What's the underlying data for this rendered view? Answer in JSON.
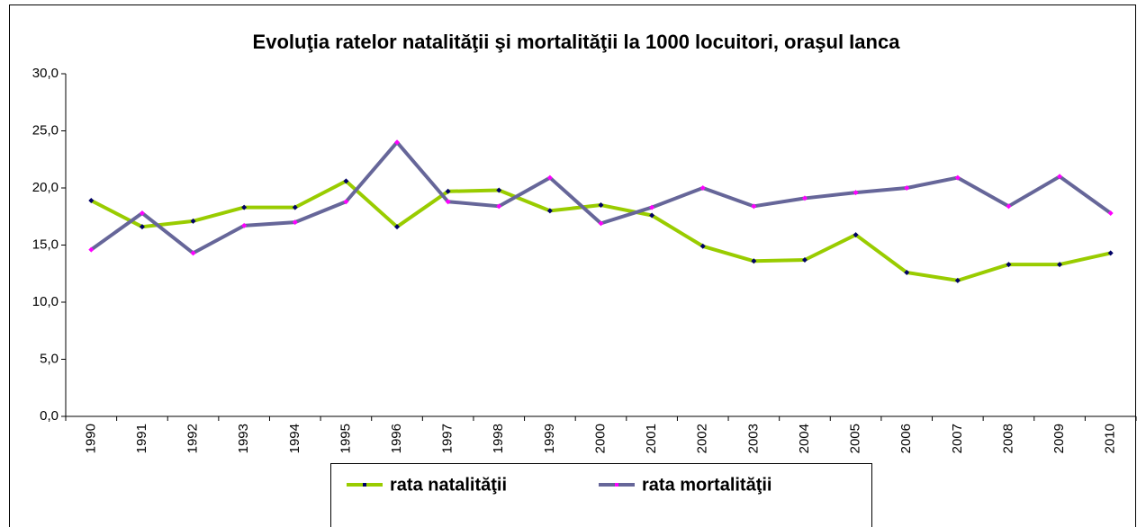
{
  "chart_data": {
    "type": "line",
    "title": "Evoluţia ratelor natalităţii şi mortalităţii la 1000 locuitori, oraşul Ianca",
    "categories": [
      "1990",
      "1991",
      "1992",
      "1993",
      "1994",
      "1995",
      "1996",
      "1997",
      "1998",
      "1999",
      "2000",
      "2001",
      "2002",
      "2003",
      "2004",
      "2005",
      "2006",
      "2007",
      "2008",
      "2009",
      "2010"
    ],
    "series": [
      {
        "name": "rata natalităţii",
        "color": "#99cc00",
        "marker_color": "#000066",
        "values": [
          18.9,
          16.6,
          17.1,
          18.3,
          18.3,
          20.6,
          16.6,
          19.7,
          19.8,
          18.0,
          18.5,
          17.6,
          14.9,
          13.6,
          13.7,
          15.9,
          12.6,
          11.9,
          13.3,
          13.3,
          14.3
        ]
      },
      {
        "name": "rata mortalităţii",
        "color": "#666699",
        "marker_color": "#ff00ff",
        "values": [
          14.6,
          17.8,
          14.3,
          16.7,
          17.0,
          18.8,
          24.0,
          18.8,
          18.4,
          20.9,
          16.9,
          18.3,
          20.0,
          18.4,
          19.1,
          19.6,
          20.0,
          20.9,
          18.4,
          21.0,
          17.8
        ]
      }
    ],
    "ylim": [
      0,
      30
    ],
    "yticks": [
      {
        "value": 0,
        "label": "0,0"
      },
      {
        "value": 5,
        "label": "5,0"
      },
      {
        "value": 10,
        "label": "10,0"
      },
      {
        "value": 15,
        "label": "15,0"
      },
      {
        "value": 20,
        "label": "20,0"
      },
      {
        "value": 25,
        "label": "25,0"
      },
      {
        "value": 30,
        "label": "30,0"
      }
    ],
    "grid": false,
    "legend": "bottom"
  }
}
